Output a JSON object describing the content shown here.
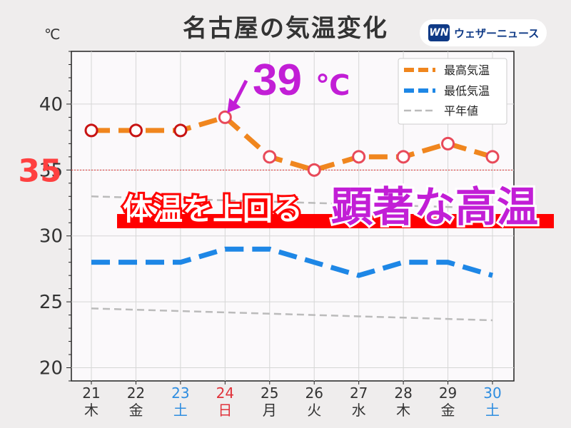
{
  "title": "名古屋の気温変化",
  "unit": "℃",
  "logo": {
    "mark": "WN",
    "text": "ウェザーニュース"
  },
  "chart_data": {
    "type": "line",
    "ylim": [
      19,
      44
    ],
    "yticks": [
      20,
      25,
      30,
      35,
      40
    ],
    "grid": true,
    "legend": "top-right",
    "x": [
      "21",
      "22",
      "23",
      "24",
      "25",
      "26",
      "27",
      "28",
      "29",
      "30"
    ],
    "weekdays": [
      "木",
      "金",
      "土",
      "日",
      "月",
      "火",
      "水",
      "木",
      "金",
      "土"
    ],
    "day_colors": [
      "#333333",
      "#333333",
      "#2e8de0",
      "#e0323a",
      "#333333",
      "#333333",
      "#333333",
      "#333333",
      "#333333",
      "#2e8de0"
    ],
    "series": [
      {
        "name": "最高気温",
        "color": "#f0861e",
        "values": [
          38,
          38,
          38,
          39,
          36,
          35,
          36,
          36,
          37,
          36
        ],
        "hollow_markers": [
          0,
          1,
          2
        ]
      },
      {
        "name": "最低気温",
        "color": "#1e87e6",
        "values": [
          28,
          28,
          28,
          29,
          29,
          28,
          27,
          28,
          28,
          27
        ]
      },
      {
        "name": "平年値",
        "color": "#bbbbbb",
        "values": [
          33.0,
          32.9,
          32.8,
          32.7,
          32.6,
          32.5,
          32.4,
          32.3,
          32.2,
          32.1
        ]
      },
      {
        "name": "",
        "color": "#bbbbbb",
        "values": [
          24.5,
          24.4,
          24.3,
          24.2,
          24.1,
          24.0,
          23.9,
          23.8,
          23.7,
          23.6
        ]
      }
    ],
    "threshold": {
      "value": 35,
      "label": "35",
      "color": "#ff4040"
    },
    "annotations": {
      "peak_label": "39",
      "peak_unit": "℃",
      "peak_color": "#c21ed6",
      "banner_white": "体温を上回る",
      "banner_purple": "顕著な高温",
      "banner_red": "#ff0000"
    }
  }
}
